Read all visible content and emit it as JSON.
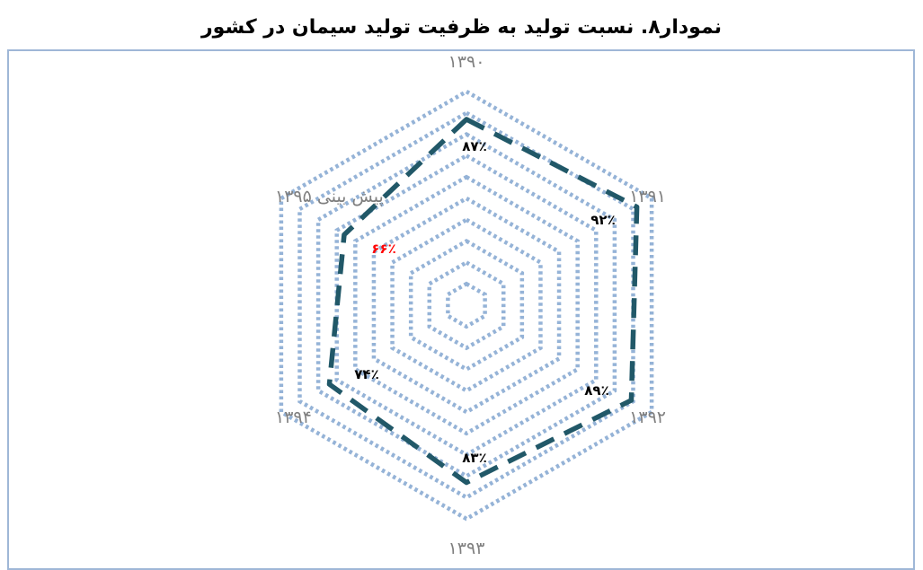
{
  "chart_data": {
    "type": "radar",
    "title": "نمودار۸. نسبت تولید به ظرفیت تولید سیمان در کشور",
    "categories": [
      "۱۳۹۰",
      "۱۳۹۱",
      "۱۳۹۲",
      "۱۳۹۳",
      "۱۳۹۴",
      "پیش بینی ۱۳۹۵"
    ],
    "series": [
      {
        "values": [
          87,
          92,
          89,
          83,
          74,
          66
        ],
        "labels": [
          "۸۷٪",
          "۹۲٪",
          "۸۹٪",
          "۸۳٪",
          "۷۴٪",
          "۶۶٪"
        ],
        "color": "#215868",
        "line_style": "dashed"
      }
    ],
    "rlim": [
      0,
      100
    ],
    "grid": true,
    "grid_color": "#95b3d7",
    "label_color": "#000000",
    "highlight_label_color": "#ff0000",
    "highlight_index": 5,
    "axis_label_color": "#7f7f7f"
  }
}
